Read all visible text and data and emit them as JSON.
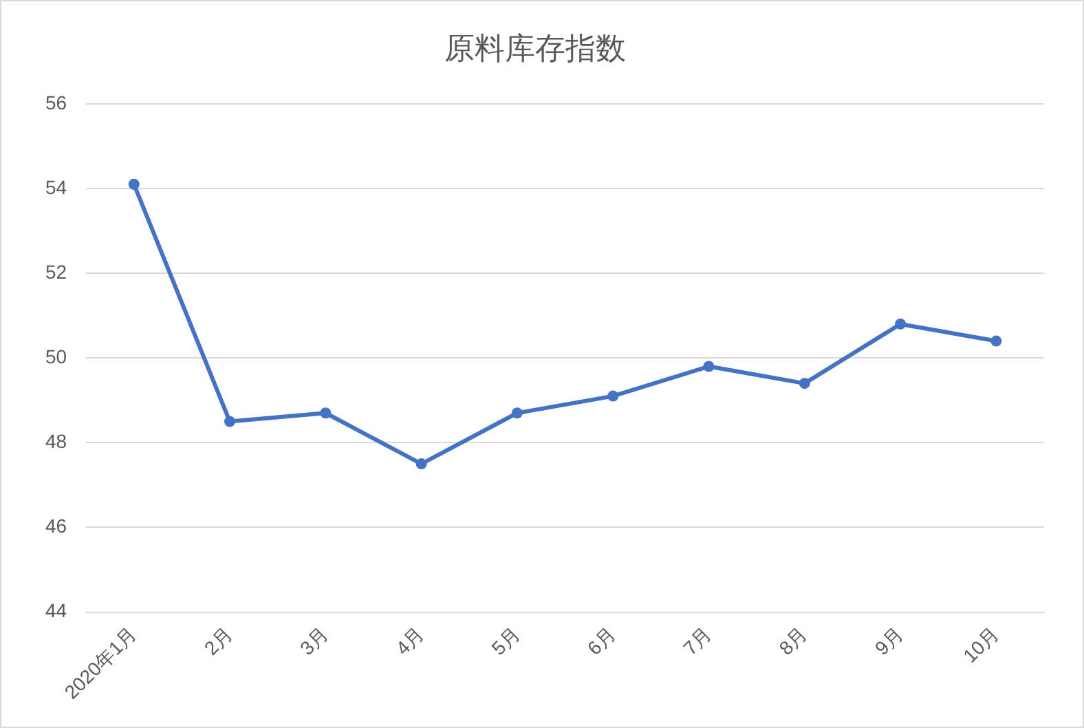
{
  "chart_data": {
    "type": "line",
    "title": "原料库存指数",
    "categories": [
      "2020年1月",
      "2月",
      "3月",
      "4月",
      "5月",
      "6月",
      "7月",
      "8月",
      "9月",
      "10月"
    ],
    "series": [
      {
        "color": "#4472c4",
        "values": [
          54.1,
          48.5,
          48.7,
          47.5,
          48.7,
          49.1,
          49.8,
          49.4,
          50.8,
          50.4
        ]
      }
    ],
    "ylim": [
      44,
      56
    ],
    "yticks": [
      44,
      46,
      48,
      50,
      52,
      54,
      56
    ],
    "grid": "y",
    "legend": false,
    "marker": "circle",
    "line_style": "solid"
  }
}
